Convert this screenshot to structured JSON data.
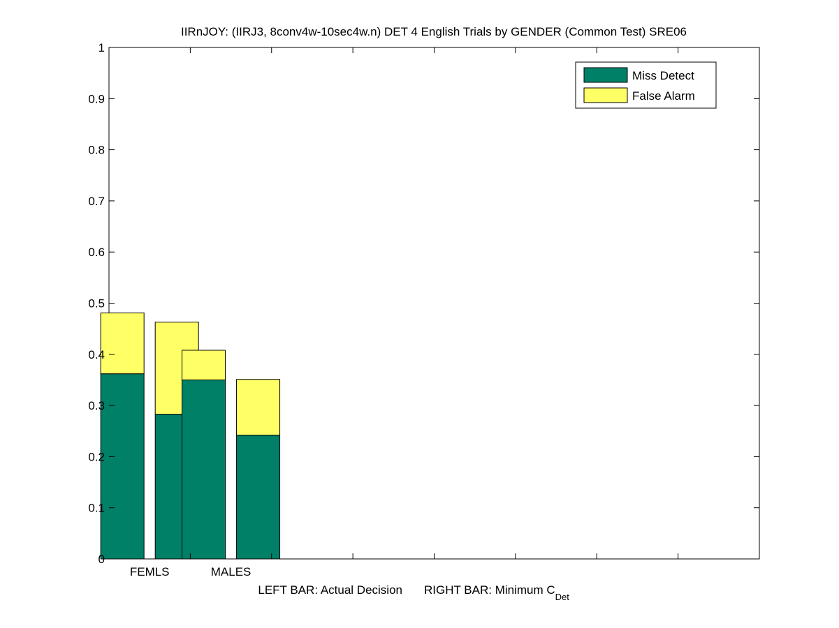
{
  "chart_data": {
    "type": "bar",
    "stacked": true,
    "title": "IIRnJOY: (IIRJ3, 8conv4w-10sec4w.n) DET 4 English Trials by GENDER (Common Test) SRE06",
    "xlabel_left": "LEFT BAR: Actual Decision",
    "xlabel_right_main": "RIGHT BAR: Minimum C",
    "xlabel_right_sub": "Det",
    "ylim": [
      0,
      1
    ],
    "yticks": [
      0,
      0.1,
      0.2,
      0.3,
      0.4,
      0.5,
      0.6,
      0.7,
      0.8,
      0.9,
      1
    ],
    "ytick_labels": [
      "0",
      "0.1",
      "0.2",
      "0.3",
      "0.4",
      "0.5",
      "0.6",
      "0.7",
      "0.8",
      "0.9",
      "1"
    ],
    "grid": false,
    "legend_position": "top-right",
    "categories": [
      "FEMLS",
      "MALES"
    ],
    "bar_roles": [
      "Actual Decision",
      "Minimum CDet"
    ],
    "series": [
      {
        "name": "Miss Detect",
        "color": "#008066",
        "values": [
          [
            0.362,
            0.283
          ],
          [
            0.35,
            0.242
          ]
        ]
      },
      {
        "name": "False Alarm",
        "color": "#ffff66",
        "values": [
          [
            0.119,
            0.18
          ],
          [
            0.058,
            0.109
          ]
        ]
      }
    ]
  }
}
